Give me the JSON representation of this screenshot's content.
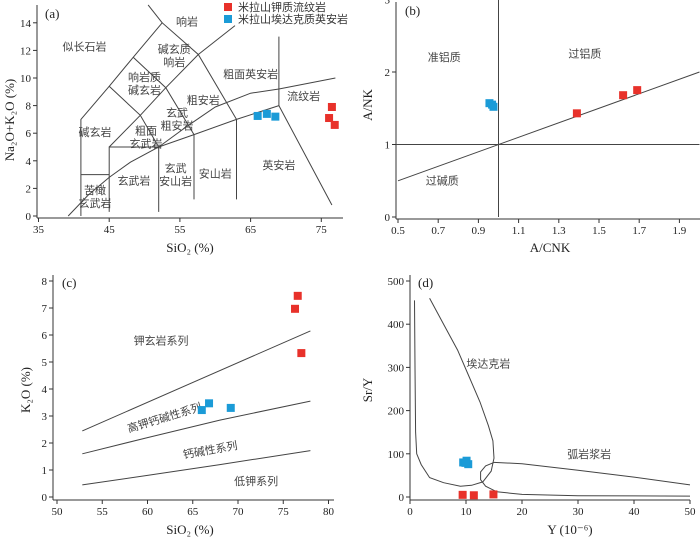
{
  "colors": {
    "rhyolite": "#e8312a",
    "dacite": "#1b9bd7"
  },
  "legend": [
    {
      "label": "米拉山钾质流纹岩",
      "series": "rhyolite"
    },
    {
      "label": "米拉山埃达克质英安岩",
      "series": "dacite"
    }
  ],
  "chart_data": [
    {
      "id": "a",
      "type": "scatter",
      "panel_label": "(a)",
      "xlabel": "SiO₂ (%)",
      "ylabel": "Na₂O+K₂O (%)",
      "xlim": [
        35,
        78
      ],
      "ylim": [
        0,
        15
      ],
      "xticks": [
        35,
        45,
        55,
        65,
        75
      ],
      "yticks": [
        0,
        2,
        4,
        6,
        8,
        10,
        12,
        14
      ],
      "series": [
        {
          "name": "米拉山钾质流纹岩",
          "key": "rhyolite",
          "points": [
            [
              76.5,
              7.9
            ],
            [
              76.1,
              7.1
            ],
            [
              76.9,
              6.6
            ]
          ]
        },
        {
          "name": "米拉山埃达克质英安岩",
          "key": "dacite",
          "points": [
            [
              66.0,
              7.25
            ],
            [
              67.3,
              7.4
            ],
            [
              68.5,
              7.2
            ]
          ]
        }
      ],
      "boundaries": [
        [
          [
            41,
            0
          ],
          [
            41,
            7
          ],
          [
            45,
            9.4
          ],
          [
            48.4,
            11.5
          ],
          [
            52.5,
            14
          ],
          [
            57.6,
            11.7
          ],
          [
            63,
            7
          ],
          [
            63,
            1.2
          ]
        ],
        [
          [
            41,
            3
          ],
          [
            45,
            3
          ]
        ],
        [
          [
            45,
            0.3
          ],
          [
            45,
            5
          ],
          [
            52,
            5
          ],
          [
            57,
            5.9
          ],
          [
            63,
            7
          ],
          [
            69,
            8
          ],
          [
            76.5,
            0.8
          ]
        ],
        [
          [
            52,
            0.3
          ],
          [
            52,
            5
          ]
        ],
        [
          [
            57,
            1.2
          ],
          [
            57,
            5.9
          ]
        ],
        [
          [
            45,
            5
          ],
          [
            49.4,
            7.3
          ],
          [
            53,
            9.3
          ],
          [
            57.6,
            11.7
          ]
        ],
        [
          [
            45,
            9.4
          ],
          [
            49.4,
            7.3
          ],
          [
            52,
            5
          ]
        ],
        [
          [
            48.4,
            11.5
          ],
          [
            53,
            9.3
          ],
          [
            57,
            5.9
          ]
        ],
        [
          [
            57.6,
            11.7
          ],
          [
            62.8,
            13.8
          ]
        ],
        [
          [
            50.5,
            15.3
          ],
          [
            52.5,
            14
          ]
        ],
        [
          [
            69,
            8
          ],
          [
            69,
            13
          ]
        ],
        [
          [
            39.2,
            0
          ],
          [
            42,
            1.5
          ],
          [
            45,
            2.8
          ],
          [
            48,
            3.9
          ],
          [
            52,
            5
          ],
          [
            56,
            6.5
          ],
          [
            60,
            7.9
          ],
          [
            65,
            8.9
          ],
          [
            69,
            9.2
          ],
          [
            73,
            9.6
          ],
          [
            77,
            10
          ]
        ]
      ],
      "annotations": [
        {
          "lines": [
            "似长石岩"
          ],
          "x": 41.5,
          "y": 12.0
        },
        {
          "lines": [
            "响岩"
          ],
          "x": 56,
          "y": 13.8
        },
        {
          "lines": [
            "碱玄质",
            "响岩"
          ],
          "x": 54.2,
          "y": 11.8
        },
        {
          "lines": [
            "粗面英安岩"
          ],
          "x": 65,
          "y": 10
        },
        {
          "lines": [
            "响岩质",
            "碱玄岩"
          ],
          "x": 50,
          "y": 9.8
        },
        {
          "lines": [
            "粗安岩"
          ],
          "x": 58.3,
          "y": 8.1
        },
        {
          "lines": [
            "流纹岩"
          ],
          "x": 72.5,
          "y": 8.4
        },
        {
          "lines": [
            "玄武",
            "粗安岩"
          ],
          "x": 54.6,
          "y": 7.2
        },
        {
          "lines": [
            "碱玄岩"
          ],
          "x": 43,
          "y": 5.8
        },
        {
          "lines": [
            "粗面",
            "玄武岩"
          ],
          "x": 50.2,
          "y": 5.9
        },
        {
          "lines": [
            "英安岩"
          ],
          "x": 69,
          "y": 3.4
        },
        {
          "lines": [
            "玄武",
            "安山岩"
          ],
          "x": 54.4,
          "y": 3.2
        },
        {
          "lines": [
            "安山岩"
          ],
          "x": 60,
          "y": 2.8
        },
        {
          "lines": [
            "玄武岩"
          ],
          "x": 48.5,
          "y": 2.3
        },
        {
          "lines": [
            "苦橄",
            "玄武岩"
          ],
          "x": 43,
          "y": 1.6
        }
      ]
    },
    {
      "id": "b",
      "type": "scatter",
      "panel_label": "(b)",
      "xlabel": "A/CNK",
      "ylabel": "A/NK",
      "xlim": [
        0.49,
        2.0
      ],
      "ylim": [
        0,
        3
      ],
      "xticks": [
        0.5,
        0.7,
        0.9,
        1.1,
        1.3,
        1.5,
        1.7,
        1.9
      ],
      "yticks": [
        0,
        1,
        2,
        3
      ],
      "series": [
        {
          "name": "米拉山钾质流纹岩",
          "key": "rhyolite",
          "points": [
            [
              1.39,
              1.43
            ],
            [
              1.62,
              1.68
            ],
            [
              1.69,
              1.75
            ]
          ]
        },
        {
          "name": "米拉山埃达克质英安岩",
          "key": "dacite",
          "points": [
            [
              0.955,
              1.57
            ],
            [
              0.968,
              1.55
            ],
            [
              0.975,
              1.52
            ]
          ]
        }
      ],
      "boundaries": [
        [
          [
            1,
            0
          ],
          [
            1,
            3
          ]
        ],
        [
          [
            0.49,
            1
          ],
          [
            2.0,
            1
          ]
        ],
        [
          [
            0.5,
            0.5
          ],
          [
            2.0,
            2.0
          ]
        ]
      ],
      "annotations": [
        {
          "lines": [
            "准铝质"
          ],
          "x": 0.73,
          "y": 2.15
        },
        {
          "lines": [
            "过铝质"
          ],
          "x": 1.43,
          "y": 2.2
        },
        {
          "lines": [
            "过碱质"
          ],
          "x": 0.72,
          "y": 0.45
        }
      ]
    },
    {
      "id": "c",
      "type": "scatter",
      "panel_label": "(c)",
      "xlabel": "SiO₂ (%)",
      "ylabel": "K₂O (%)",
      "xlim": [
        49.6,
        81
      ],
      "ylim": [
        0,
        8
      ],
      "xticks": [
        50,
        55,
        60,
        65,
        70,
        75,
        80
      ],
      "yticks": [
        0,
        1,
        2,
        3,
        4,
        5,
        6,
        7,
        8
      ],
      "series": [
        {
          "name": "米拉山钾质流纹岩",
          "key": "rhyolite",
          "points": [
            [
              76.6,
              7.45
            ],
            [
              76.3,
              6.97
            ],
            [
              77.0,
              5.33
            ]
          ]
        },
        {
          "name": "米拉山埃达克质英安岩",
          "key": "dacite",
          "points": [
            [
              66.0,
              3.22
            ],
            [
              66.8,
              3.47
            ],
            [
              69.2,
              3.3
            ]
          ]
        }
      ],
      "boundaries": [
        [
          [
            52.8,
            2.45
          ],
          [
            78,
            6.15
          ]
        ],
        [
          [
            52.8,
            1.6
          ],
          [
            60,
            2.2
          ],
          [
            68,
            2.85
          ],
          [
            78,
            3.55
          ]
        ],
        [
          [
            52.8,
            0.45
          ],
          [
            60,
            0.8
          ],
          [
            68,
            1.2
          ],
          [
            78,
            1.72
          ]
        ]
      ],
      "annotations": [
        {
          "lines": [
            "钾玄岩系列"
          ],
          "x": 61.5,
          "y": 5.65
        },
        {
          "lines": [
            "高钾钙碱性系列"
          ],
          "x": 62,
          "y": 2.8,
          "rotate": -17
        },
        {
          "lines": [
            "钙碱性系列"
          ],
          "x": 67,
          "y": 1.6,
          "rotate": -10
        },
        {
          "lines": [
            "低钾系列"
          ],
          "x": 72,
          "y": 0.45
        }
      ]
    },
    {
      "id": "d",
      "type": "scatter",
      "panel_label": "(d)",
      "xlabel": "Y (10⁻⁶)",
      "ylabel": "Sr/Y",
      "xlim": [
        0,
        50
      ],
      "ylim": [
        0,
        500
      ],
      "xticks": [
        0,
        10,
        20,
        30,
        40,
        50
      ],
      "yticks": [
        0,
        100,
        200,
        300,
        400,
        500
      ],
      "series": [
        {
          "name": "米拉山钾质流纹岩",
          "key": "rhyolite",
          "points": [
            [
              9.4,
              5
            ],
            [
              11.4,
              4
            ],
            [
              14.9,
              6
            ]
          ]
        },
        {
          "name": "米拉山埃达克质英安岩",
          "key": "dacite",
          "points": [
            [
              9.5,
              80
            ],
            [
              10.1,
              84
            ],
            [
              10.4,
              76
            ],
            [
              9.9,
              79
            ]
          ]
        }
      ],
      "boundaries": [
        [
          [
            0.8,
            455
          ],
          [
            0.9,
            300
          ],
          [
            1.0,
            150
          ],
          [
            1.2,
            100
          ],
          [
            2,
            75
          ],
          [
            3.5,
            45
          ],
          [
            6,
            33
          ],
          [
            9,
            25
          ],
          [
            11,
            27
          ],
          [
            13,
            35
          ],
          [
            14.5,
            60
          ],
          [
            15,
            90
          ],
          [
            14.8,
            130
          ],
          [
            14,
            165
          ],
          [
            12.5,
            220
          ],
          [
            10.5,
            280
          ],
          [
            8.5,
            340
          ],
          [
            6,
            400
          ],
          [
            3.5,
            460
          ]
        ],
        [
          [
            15,
            80
          ],
          [
            20,
            77
          ],
          [
            30,
            62
          ],
          [
            40,
            46
          ],
          [
            50,
            28
          ]
        ],
        [
          [
            15,
            80
          ],
          [
            13.5,
            72
          ],
          [
            12.6,
            58
          ],
          [
            12.6,
            40
          ],
          [
            13.5,
            25
          ],
          [
            15.5,
            12
          ],
          [
            20,
            6
          ],
          [
            30,
            3
          ],
          [
            50,
            2
          ]
        ]
      ],
      "annotations": [
        {
          "lines": [
            "埃达克岩"
          ],
          "x": 14,
          "y": 300
        },
        {
          "lines": [
            "弧岩浆岩"
          ],
          "x": 32,
          "y": 90
        }
      ]
    }
  ]
}
